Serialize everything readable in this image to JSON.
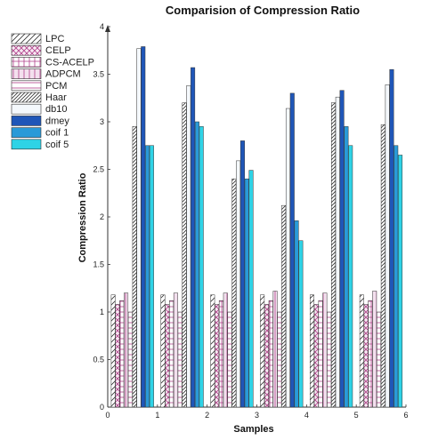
{
  "chart_data": {
    "type": "bar",
    "title": "Comparision of Compression Ratio",
    "xlabel": "Samples",
    "ylabel": "Compression Ratio",
    "xlim": [
      0,
      6
    ],
    "ylim": [
      0,
      4
    ],
    "xticks": [
      "0",
      "1",
      "2",
      "3",
      "4",
      "5",
      "6"
    ],
    "yticks": [
      "0",
      "0.5",
      "1",
      "1.5",
      "2",
      "2.5",
      "3",
      "3.5",
      "4"
    ],
    "x": [
      0.5,
      1.5,
      2.5,
      3.5,
      4.5,
      5.5
    ],
    "legend_position": "top-left",
    "grid": false,
    "series": [
      {
        "name": "LPC",
        "values": [
          1.18,
          1.18,
          1.18,
          1.18,
          1.18,
          1.18
        ]
      },
      {
        "name": "CELP",
        "values": [
          1.08,
          1.08,
          1.08,
          1.08,
          1.08,
          1.08
        ]
      },
      {
        "name": "CS-ACELP",
        "values": [
          1.12,
          1.12,
          1.12,
          1.12,
          1.12,
          1.12
        ]
      },
      {
        "name": "ADPCM",
        "values": [
          1.2,
          1.2,
          1.2,
          1.22,
          1.2,
          1.22
        ]
      },
      {
        "name": "PCM",
        "values": [
          1.0,
          1.0,
          1.0,
          1.0,
          1.0,
          1.0
        ]
      },
      {
        "name": "Haar",
        "values": [
          2.95,
          3.2,
          2.4,
          2.12,
          3.2,
          2.97
        ]
      },
      {
        "name": "db10",
        "values": [
          3.77,
          3.38,
          2.59,
          3.14,
          3.26,
          3.39
        ]
      },
      {
        "name": "dmey",
        "values": [
          3.79,
          3.57,
          2.8,
          3.3,
          3.33,
          3.55
        ]
      },
      {
        "name": "coif 1",
        "values": [
          2.75,
          3.0,
          2.4,
          1.96,
          2.95,
          2.75
        ]
      },
      {
        "name": "coif 5",
        "values": [
          2.75,
          2.95,
          2.49,
          1.75,
          2.75,
          2.65
        ]
      }
    ]
  },
  "styles": {
    "series_fill": [
      "#ffffff",
      "#f7e9f3",
      "#ffffff",
      "#f3e0ee",
      "#ffffff",
      "#ffffff",
      "#f4f8fc",
      "#1f56b8",
      "#2a9ad8",
      "#2ed3e6"
    ],
    "series_pattern": [
      "diag",
      "cross",
      "hgrid",
      "vlines",
      "hlines",
      "diag-dense",
      "none",
      "none",
      "none",
      "none"
    ],
    "pattern_color": [
      "#333333",
      "#b0408a",
      "#b0408a",
      "#b0408a",
      "#b0408a",
      "#333333",
      "#333333",
      "#333333",
      "#333333",
      "#333333"
    ],
    "legend_swatch_fill": [
      "#ffffff",
      "#f7e9f3",
      "#ffffff",
      "#f3e0ee",
      "#ffffff",
      "#ffffff",
      "#f4f8fc",
      "#1f56b8",
      "#2a9ad8",
      "#2ed3e6"
    ]
  }
}
